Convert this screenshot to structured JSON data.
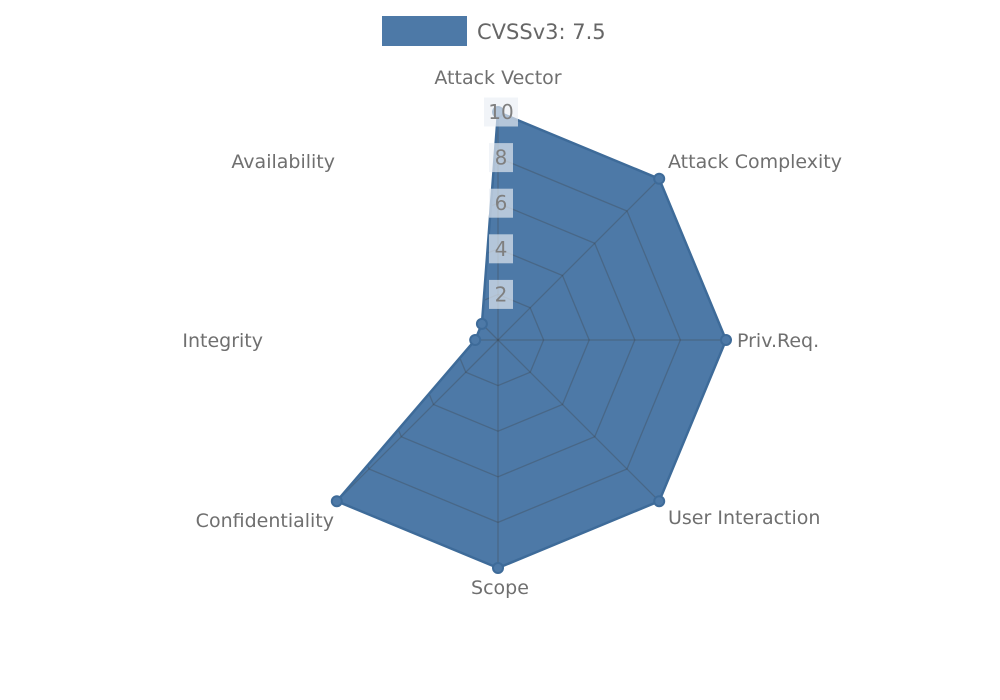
{
  "title": "CVSSv3 radar chart",
  "legend": {
    "label": "CVSSv3: 7.5",
    "position": "top-center"
  },
  "chart_data": {
    "type": "radar",
    "categories": [
      "Attack Vector",
      "Attack Complexity",
      "Priv.Req.",
      "User Interaction",
      "Scope",
      "Confidentiality",
      "Integrity",
      "Availability"
    ],
    "series": [
      {
        "name": "CVSSv3: 7.5",
        "values": [
          10,
          10,
          10,
          10,
          10,
          10,
          1,
          1
        ]
      }
    ],
    "axis_range": [
      0,
      10
    ],
    "ticks": [
      2,
      4,
      6,
      8,
      10
    ],
    "grid": "polygon-web",
    "grid_visible_only_inside_fill": true,
    "legend_position": "top-center",
    "colors": {
      "fill": "#4d79a7",
      "stroke": "#3e6b99",
      "grid_line": "#404040",
      "grid_opacity": 0.3,
      "axis_label": "#6f6f6f",
      "tick_label": "#7f7f7f",
      "tick_bg": "#e9eef5",
      "tick_bg_opacity": 0.66,
      "legend_text": "#666666",
      "background": "#ffffff"
    }
  }
}
